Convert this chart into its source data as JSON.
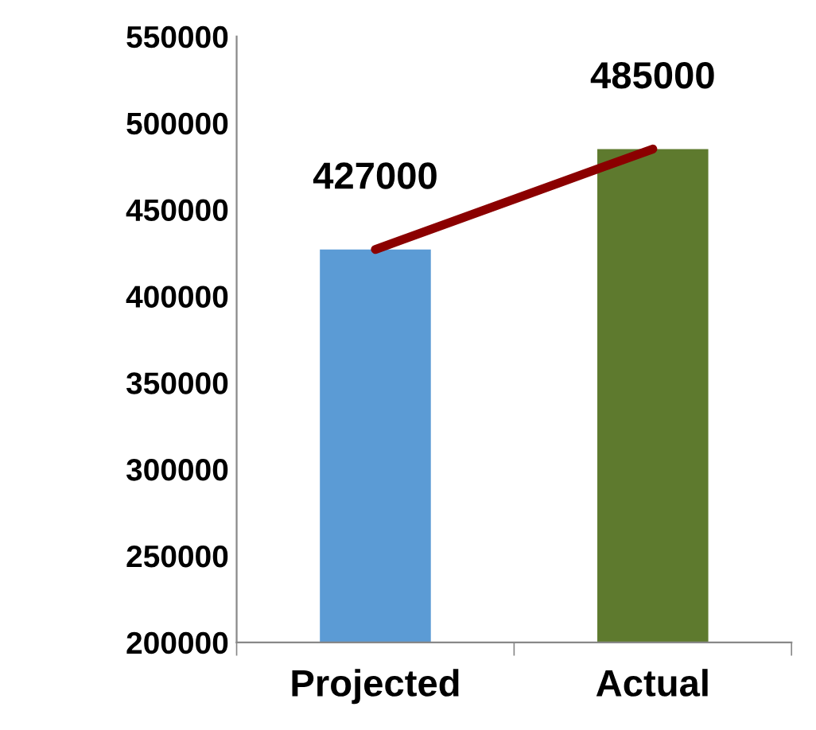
{
  "chart_data": {
    "type": "bar",
    "categories": [
      "Projected",
      "Actual"
    ],
    "series": [
      {
        "colors": [
          "#5b9bd5",
          "#5e7a2e"
        ],
        "values": [
          427000,
          485000
        ],
        "value_labels": [
          "427000",
          "485000"
        ]
      },
      {
        "type": "line",
        "color": "#8b0000",
        "values": [
          427000,
          485000
        ]
      }
    ],
    "ylim": [
      200000,
      550000
    ],
    "yticks": [
      200000,
      250000,
      300000,
      350000,
      400000,
      450000,
      500000,
      550000
    ],
    "grid": false,
    "legend": false
  }
}
